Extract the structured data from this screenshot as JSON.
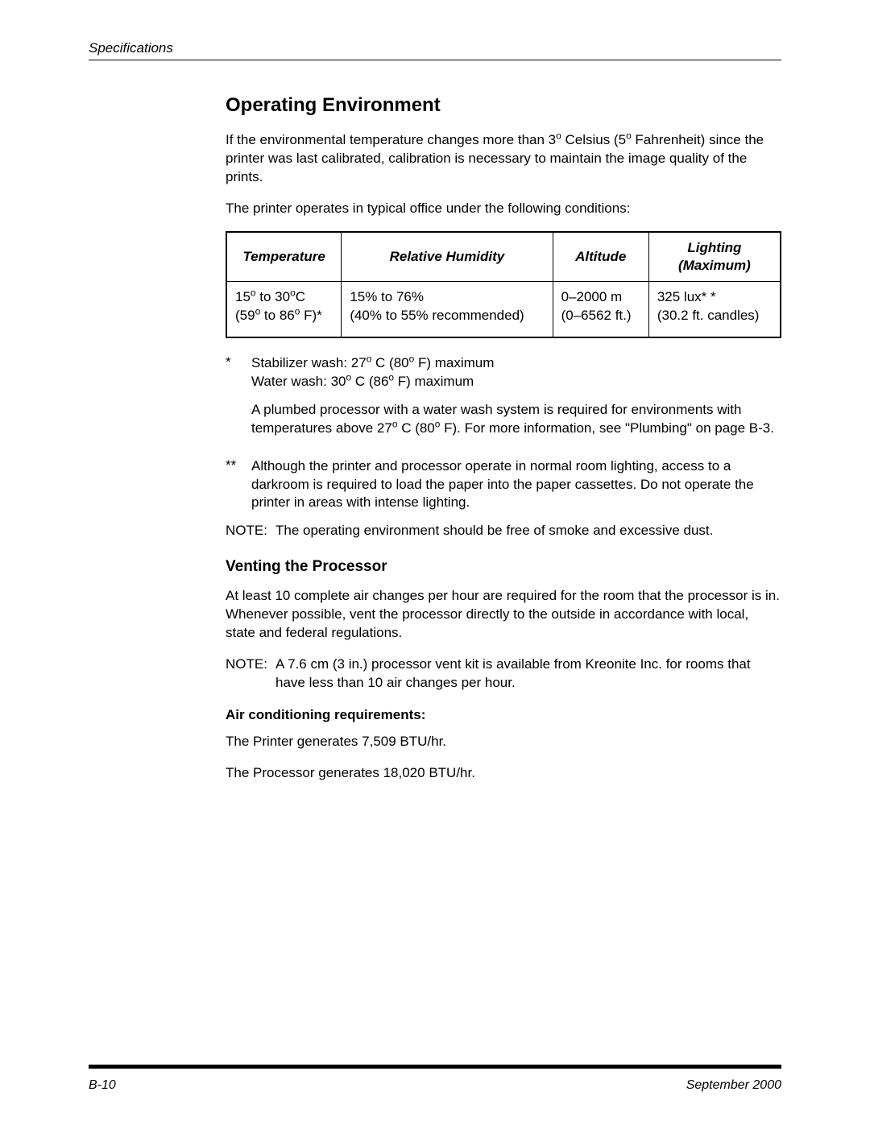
{
  "header": {
    "section": "Specifications"
  },
  "heading": "Operating Environment",
  "intro_para_html": "If the environmental temperature changes more than 3<sup>o</sup> Celsius (5<sup>o</sup> Fahrenheit) since the printer was last calibrated, calibration is necessary to maintain the image quality of the prints.",
  "conditions_para": "The printer operates in typical office under the following conditions:",
  "table": {
    "headers": [
      "Temperature",
      "Relative Humidity",
      "Altitude",
      "Lighting<br>(Maximum)"
    ],
    "row": [
      "15<sup>o</sup> to 30<sup>o</sup>C<br>(59<sup>o</sup> to 86<sup>o</sup> F)*",
      "15% to 76%<br>(40% to 55% recommended)",
      "0–2000 m<br>(0–6562 ft.)",
      "325 lux* *<br>(30.2 ft. candles)"
    ]
  },
  "footnote1": {
    "marker": "*",
    "para1_html": "Stabilizer wash: 27<sup>o</sup> C (80<sup>o</sup> F) maximum<br>Water wash: 30<sup>o</sup> C (86<sup>o</sup> F) maximum",
    "para2_html": "A plumbed processor with a water wash system is required for environments with temperatures above 27<sup>o</sup> C (80<sup>o</sup> F). For more information, see \"Plumbing\" on page B-3."
  },
  "footnote2": {
    "marker": "**",
    "text": "Although the printer and processor operate in normal room lighting, access to a darkroom is required to load the paper into the paper cassettes. Do not operate the printer in areas with intense lighting."
  },
  "note1": {
    "label": "NOTE:",
    "text": "The operating environment should be free of smoke and excessive dust."
  },
  "sub_heading": "Venting the Processor",
  "venting_para": "At least 10 complete air changes per hour are required for the room that the processor is in. Whenever possible, vent the processor directly to the outside in accordance with local, state and federal regulations.",
  "note2": {
    "label": "NOTE:",
    "text": "A 7.6 cm (3 in.) processor vent kit is available from Kreonite Inc. for rooms that have less than 10 air changes per hour."
  },
  "ac_heading": "Air conditioning requirements:",
  "ac_line1": "The Printer generates 7,509 BTU/hr.",
  "ac_line2": "The Processor generates 18,020 BTU/hr.",
  "footer": {
    "page": "B-10",
    "date": "September 2000"
  },
  "colors": {
    "text": "#000000",
    "background": "#ffffff",
    "rule": "#000000"
  }
}
